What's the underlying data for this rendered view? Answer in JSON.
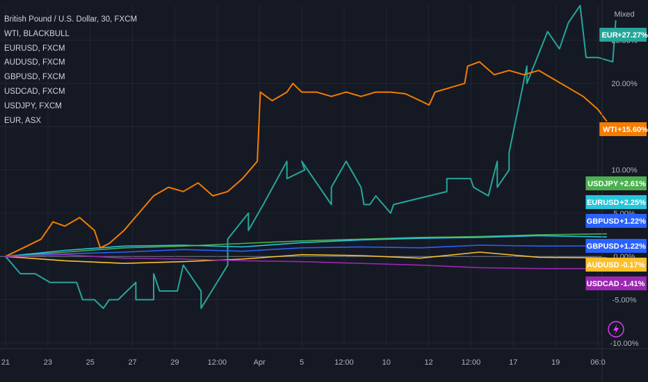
{
  "legend": {
    "items": [
      "British Pound / U.S. Dollar, 30, FXCM",
      "WTI, BLACKBULL",
      "EURUSD, FXCM",
      "AUDUSD, FXCM",
      "GBPUSD, FXCM",
      "USDCAD, FXCM",
      "USDJPY, FXCM",
      "EUR, ASX"
    ]
  },
  "scale_mode": "Mixed",
  "colors": {
    "background": "#151924",
    "grid": "#232633",
    "zero_line": "#787b86",
    "WTI": "#f57c00",
    "EUR": "#26a69a",
    "USDJPY": "#4caf50",
    "EURUSD": "#26c6da",
    "GBPUSD": "#2962ff",
    "AUDUSD": "#fbc02d",
    "USDCAD": "#9c27b0",
    "lightning": "#e040fb"
  },
  "chart_data": {
    "type": "line",
    "yaxis": {
      "unit": "%",
      "ticks": [
        25,
        20,
        15,
        10,
        5,
        0,
        -5,
        -10
      ],
      "tick_labels": [
        "25.00%",
        "20.00%",
        "15.00%",
        "10.00%",
        "5.00%",
        "0.00%",
        "-5.00%",
        "-10.00%"
      ],
      "range": [
        -10.5,
        29
      ]
    },
    "xaxis": {
      "ticks": [
        "21",
        "23",
        "25",
        "27",
        "29",
        "12:00",
        "Apr",
        "5",
        "12:00",
        "10",
        "12",
        "12:00",
        "17",
        "19",
        "06:0"
      ],
      "range": [
        0,
        20
      ]
    },
    "series": [
      {
        "name": "EUR",
        "tag": "EUR",
        "value_label": "+27.27%",
        "points": [
          [
            0,
            0
          ],
          [
            0.5,
            -2
          ],
          [
            1,
            -2
          ],
          [
            1.5,
            -3
          ],
          [
            2,
            -3
          ],
          [
            2.4,
            -3
          ],
          [
            2.6,
            -5
          ],
          [
            3,
            -5
          ],
          [
            3.3,
            -6
          ],
          [
            3.5,
            -5
          ],
          [
            3.8,
            -5
          ],
          [
            4.4,
            -3
          ],
          [
            4.4,
            -5
          ],
          [
            5,
            -5
          ],
          [
            5,
            -2
          ],
          [
            5.2,
            -4
          ],
          [
            5.8,
            -4
          ],
          [
            6,
            -1
          ],
          [
            6.6,
            -4
          ],
          [
            6.6,
            -6
          ],
          [
            7.5,
            -1
          ],
          [
            7.5,
            2
          ],
          [
            8.2,
            5
          ],
          [
            8.2,
            3
          ],
          [
            8.7,
            6
          ],
          [
            9.5,
            11
          ],
          [
            9.5,
            9
          ],
          [
            10.1,
            10
          ],
          [
            10,
            11
          ],
          [
            11,
            6
          ],
          [
            11,
            8
          ],
          [
            11.5,
            11
          ],
          [
            12,
            8
          ],
          [
            12.1,
            6
          ],
          [
            12.3,
            6
          ],
          [
            12.5,
            7
          ],
          [
            13,
            5
          ],
          [
            13.1,
            6
          ],
          [
            14.9,
            7.5
          ],
          [
            14.9,
            9
          ],
          [
            15.7,
            9
          ],
          [
            15.8,
            8
          ],
          [
            16.3,
            7
          ],
          [
            16.6,
            11
          ],
          [
            16.6,
            8
          ],
          [
            17,
            10
          ],
          [
            17,
            12
          ],
          [
            17.6,
            22
          ],
          [
            17.6,
            20
          ],
          [
            18.3,
            26
          ],
          [
            18.7,
            24
          ],
          [
            19,
            27
          ],
          [
            19.4,
            29
          ],
          [
            19.6,
            23
          ],
          [
            20,
            23
          ],
          [
            20.5,
            22.5
          ],
          [
            20.6,
            27.3
          ]
        ]
      },
      {
        "name": "WTI",
        "tag": "WTI",
        "value_label": "+15.60%",
        "points": [
          [
            0,
            0
          ],
          [
            0.6,
            1
          ],
          [
            1.2,
            2
          ],
          [
            1.6,
            4
          ],
          [
            2,
            3.5
          ],
          [
            2.5,
            4.5
          ],
          [
            3,
            3
          ],
          [
            3.2,
            1
          ],
          [
            3.5,
            1.5
          ],
          [
            4,
            3
          ],
          [
            4.5,
            5
          ],
          [
            5,
            7
          ],
          [
            5.5,
            8
          ],
          [
            6,
            7.5
          ],
          [
            6.5,
            8.5
          ],
          [
            7,
            7
          ],
          [
            7.5,
            7.5
          ],
          [
            8,
            9
          ],
          [
            8.5,
            11
          ],
          [
            8.6,
            19
          ],
          [
            9,
            18
          ],
          [
            9.5,
            19
          ],
          [
            9.7,
            20
          ],
          [
            10,
            19
          ],
          [
            10.5,
            19
          ],
          [
            11,
            18.5
          ],
          [
            11.5,
            19
          ],
          [
            12,
            18.5
          ],
          [
            12.5,
            19
          ],
          [
            13,
            19
          ],
          [
            13.5,
            18.8
          ],
          [
            14,
            18
          ],
          [
            14.3,
            17.5
          ],
          [
            14.5,
            19
          ],
          [
            15,
            19.5
          ],
          [
            15.5,
            20
          ],
          [
            15.6,
            22
          ],
          [
            16,
            22.5
          ],
          [
            16.5,
            21
          ],
          [
            17,
            21.5
          ],
          [
            17.5,
            21
          ],
          [
            18,
            21.5
          ],
          [
            18.5,
            20.5
          ],
          [
            19,
            19.5
          ],
          [
            19.5,
            18.5
          ],
          [
            20,
            17
          ],
          [
            20.3,
            15.6
          ]
        ]
      },
      {
        "name": "USDJPY",
        "tag": "USDJPY",
        "value_label": "+2.61%",
        "points": [
          [
            0,
            0
          ],
          [
            2,
            0.5
          ],
          [
            4,
            1
          ],
          [
            6,
            1.2
          ],
          [
            8,
            1.5
          ],
          [
            10,
            1.8
          ],
          [
            12,
            2
          ],
          [
            14,
            2.2
          ],
          [
            16,
            2.3
          ],
          [
            18,
            2.5
          ],
          [
            20.3,
            2.61
          ]
        ]
      },
      {
        "name": "EURUSD",
        "tag": "EURUSD",
        "value_label": "+2.25%",
        "points": [
          [
            0,
            0
          ],
          [
            2,
            0.7
          ],
          [
            4,
            1.2
          ],
          [
            6,
            1.3
          ],
          [
            8,
            1.1
          ],
          [
            10,
            1.6
          ],
          [
            12,
            1.9
          ],
          [
            14,
            2.1
          ],
          [
            16,
            2.2
          ],
          [
            18,
            2.4
          ],
          [
            20.3,
            2.25
          ]
        ]
      },
      {
        "name": "GBPUSD",
        "tag": "GBPUSD",
        "value_label": "+1.22%",
        "points": [
          [
            0,
            0
          ],
          [
            2,
            0.3
          ],
          [
            4,
            0.5
          ],
          [
            6,
            0.8
          ],
          [
            8,
            0.6
          ],
          [
            10,
            1.0
          ],
          [
            12,
            1.1
          ],
          [
            14,
            1.0
          ],
          [
            16,
            1.3
          ],
          [
            18,
            1.2
          ],
          [
            20.3,
            1.22
          ]
        ]
      },
      {
        "name": "AUDUSD",
        "tag": "AUDUSD",
        "value_label": "-0.17%",
        "points": [
          [
            0,
            0
          ],
          [
            2,
            -0.5
          ],
          [
            4,
            -0.8
          ],
          [
            6,
            -0.6
          ],
          [
            8,
            -0.3
          ],
          [
            10,
            0.2
          ],
          [
            12,
            0.1
          ],
          [
            14,
            -0.2
          ],
          [
            16,
            0.5
          ],
          [
            18,
            -0.1
          ],
          [
            20.3,
            -0.17
          ]
        ]
      },
      {
        "name": "USDCAD",
        "tag": "USDCAD",
        "value_label": "-1.41%",
        "points": [
          [
            0,
            0
          ],
          [
            2,
            0.2
          ],
          [
            4,
            -0.2
          ],
          [
            6,
            -0.3
          ],
          [
            8,
            -0.5
          ],
          [
            10,
            -0.6
          ],
          [
            12,
            -0.8
          ],
          [
            14,
            -1.0
          ],
          [
            16,
            -1.3
          ],
          [
            18,
            -1.4
          ],
          [
            20.3,
            -1.41
          ]
        ]
      }
    ],
    "duplicate_tags": [
      {
        "tag": "GBPUSD",
        "value_label": "+1.22%",
        "series": "GBPUSD"
      }
    ]
  }
}
